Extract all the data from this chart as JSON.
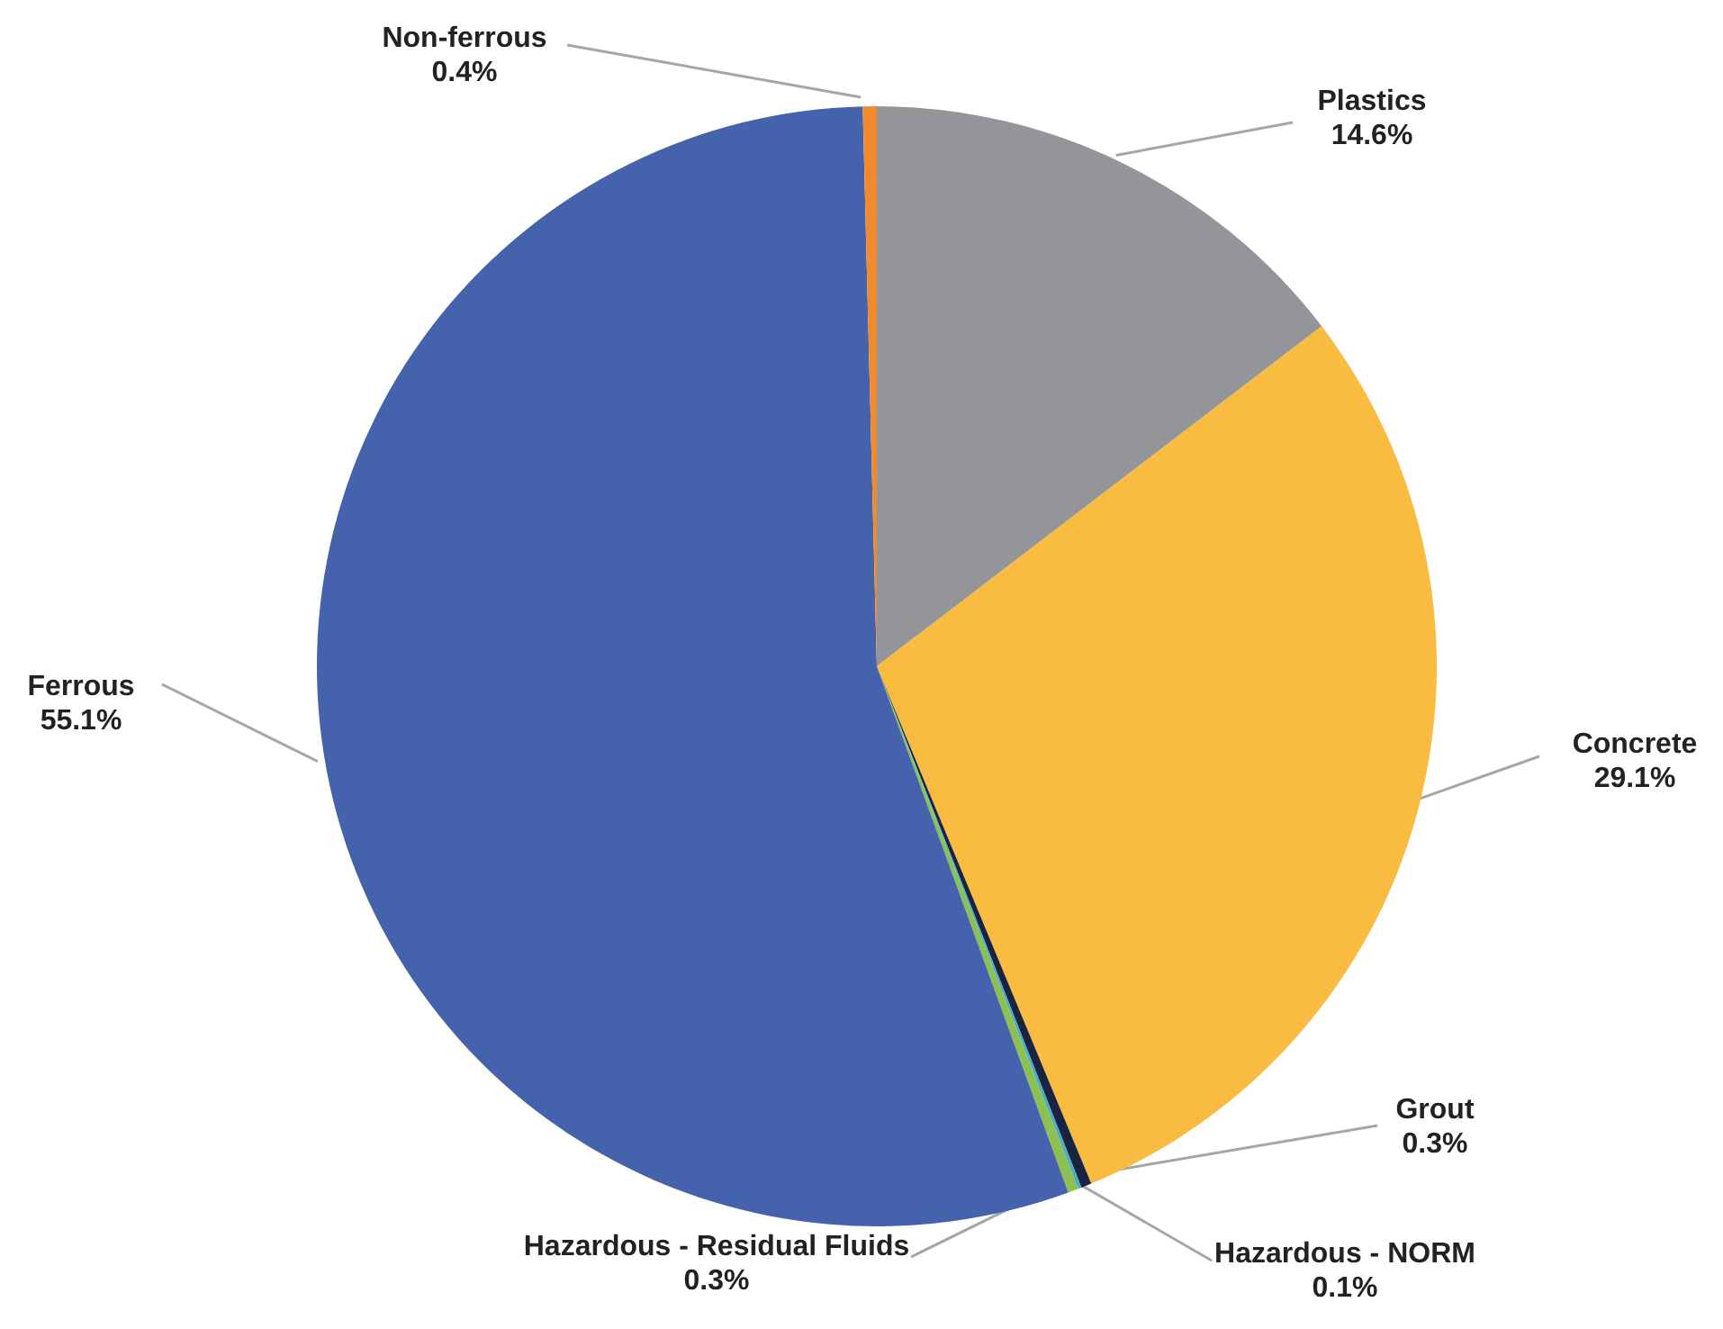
{
  "chart_data": {
    "type": "pie",
    "categories": [
      "Plastics",
      "Concrete",
      "Grout",
      "Hazardous - NORM",
      "Hazardous - Residual Fluids",
      "Ferrous",
      "Non-ferrous"
    ],
    "values": [
      14.6,
      29.1,
      0.3,
      0.1,
      0.3,
      55.1,
      0.4
    ],
    "value_labels": [
      "14.6%",
      "29.1%",
      "0.3%",
      "0.1%",
      "0.3%",
      "55.1%",
      "0.4%"
    ],
    "colors": [
      "#939598",
      "#f9bb40",
      "#1a2440",
      "#4bacc6",
      "#8cc152",
      "#4563ad",
      "#f08a2c"
    ],
    "legend": false
  }
}
